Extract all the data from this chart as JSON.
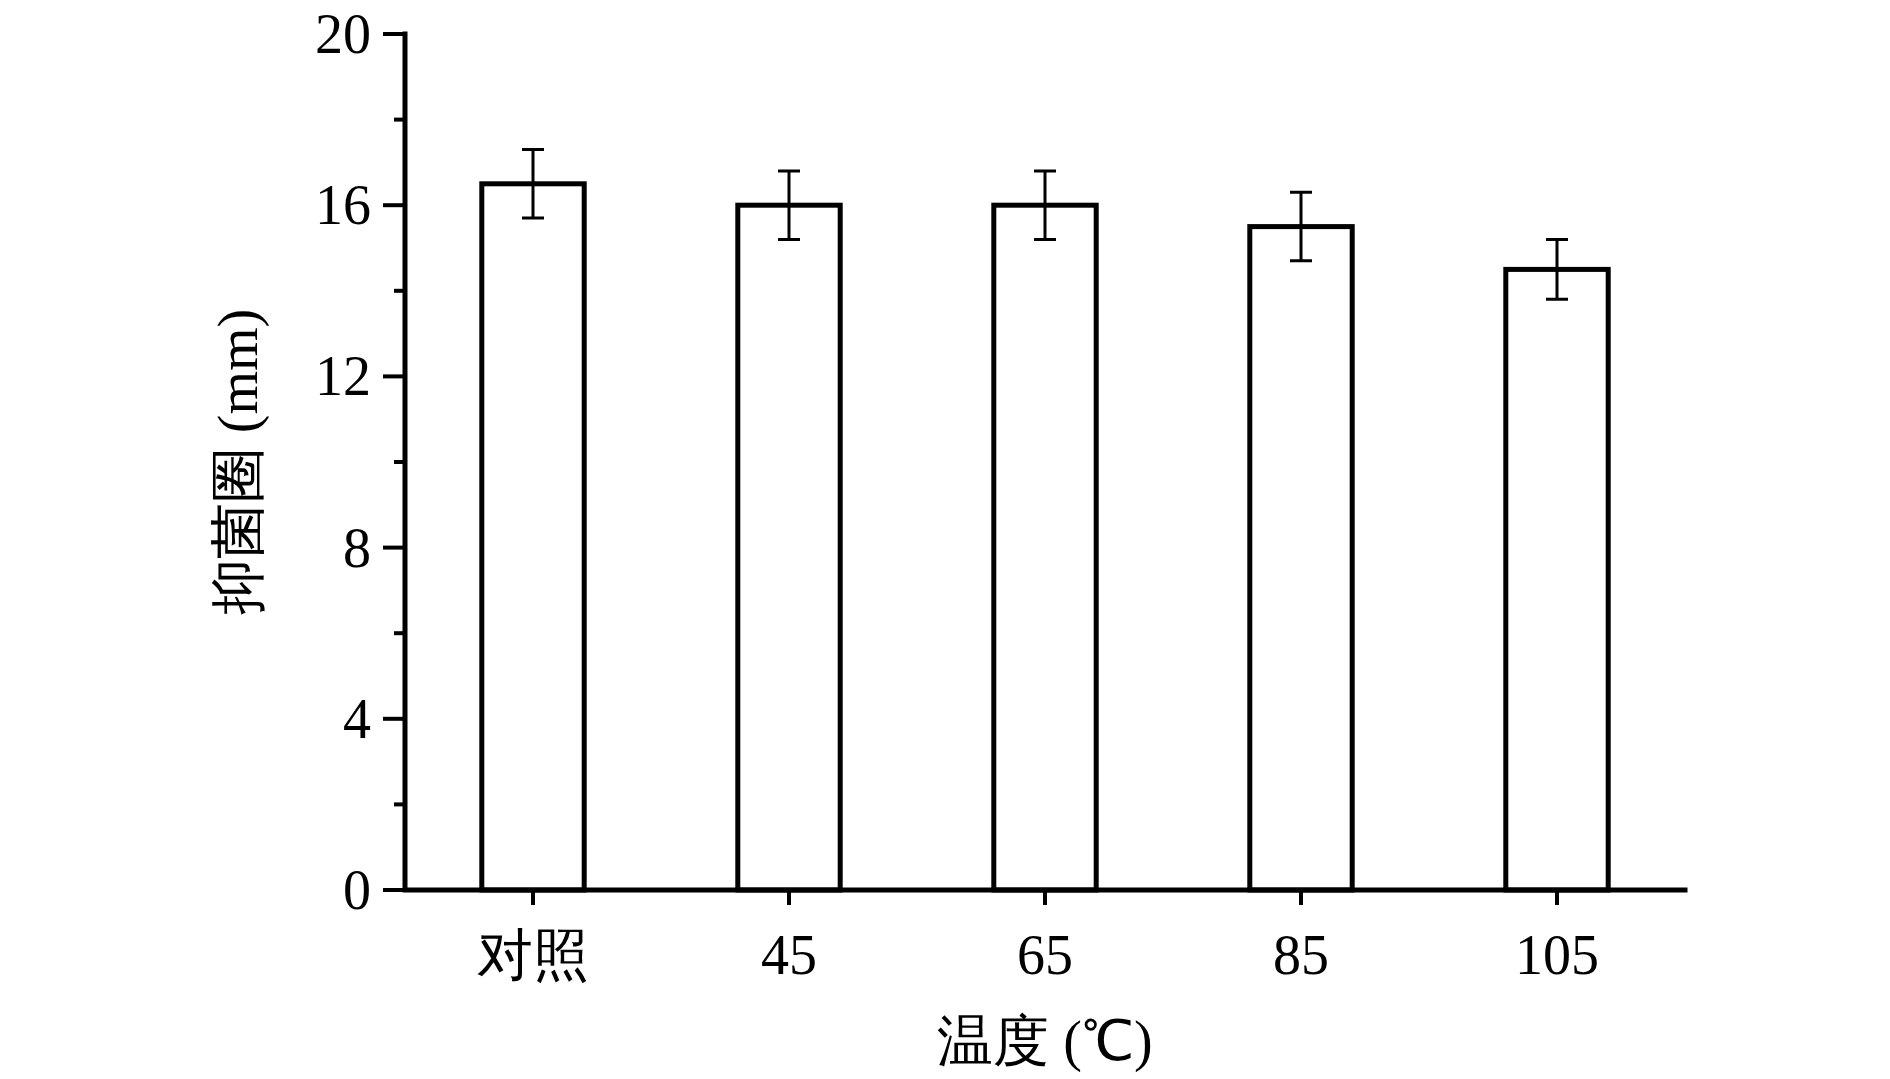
{
  "chart_data": {
    "type": "bar",
    "xlabel": "温度 (℃)",
    "ylabel": "抑菌圈 (mm)",
    "categories": [
      "对照",
      "45",
      "65",
      "85",
      "105"
    ],
    "values": [
      16.5,
      16,
      16,
      15.5,
      14.5
    ],
    "errors": [
      0.8,
      0.8,
      0.8,
      0.8,
      0.7
    ],
    "color": "#ffffff",
    "ylim": [
      0,
      20
    ],
    "yticks": [
      0,
      {
        "value": 2,
        "label": null
      },
      4,
      {
        "value": 6,
        "label": null
      },
      8,
      {
        "value": 10,
        "label": null
      },
      12,
      {
        "value": 14,
        "label": null
      },
      16,
      {
        "value": 18,
        "label": null
      },
      20
    ]
  }
}
